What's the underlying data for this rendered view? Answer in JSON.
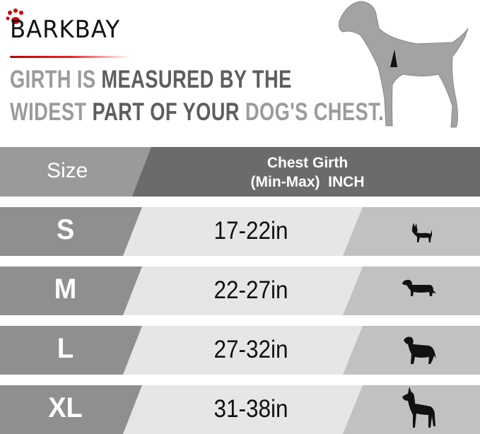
{
  "brand": {
    "name": "BARKBAY",
    "accent_color": "#d40000"
  },
  "headline": {
    "line1": [
      {
        "text": "GIRTH IS ",
        "tone": "light"
      },
      {
        "text": "MEASURED BY THE",
        "tone": "dark"
      }
    ],
    "line2": [
      {
        "text": "WIDEST ",
        "tone": "light"
      },
      {
        "text": "PART OF YOUR ",
        "tone": "dark"
      },
      {
        "text": "DOG'S CHEST.",
        "tone": "light"
      }
    ]
  },
  "table": {
    "header": {
      "size": "Size",
      "girth_line1": "Chest Girth",
      "girth_line2": "(Min-Max)  INCH"
    },
    "rows": [
      {
        "size": "S",
        "range": "17-22in",
        "icon": "chihuahua-icon"
      },
      {
        "size": "M",
        "range": "22-27in",
        "icon": "dachshund-icon"
      },
      {
        "size": "L",
        "range": "27-32in",
        "icon": "labrador-icon"
      },
      {
        "size": "XL",
        "range": "31-38in",
        "icon": "great-dane-icon"
      }
    ]
  },
  "colors": {
    "header_left": "#9a9a9a",
    "header_right": "#6b6b6b",
    "row_left": "#8f8f8f",
    "row_mid": "#e6e6e6",
    "row_right": "#c1c1c1"
  }
}
